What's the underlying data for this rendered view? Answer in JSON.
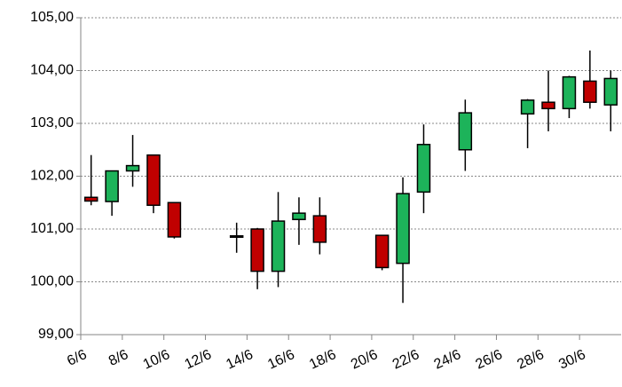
{
  "chart_data": {
    "type": "candlestick",
    "categories": [
      "6/6",
      null,
      "8/6",
      null,
      "10/6",
      null,
      "12/6",
      null,
      "14/6",
      null,
      "16/6",
      null,
      "18/6",
      null,
      "20/6",
      null,
      "22/6",
      null,
      "24/6",
      null,
      "26/6",
      null,
      "28/6",
      null,
      "30/6",
      null
    ],
    "open": [
      101.6,
      101.52,
      102.1,
      102.4,
      101.5,
      null,
      null,
      100.87,
      101.0,
      100.2,
      101.18,
      101.25,
      null,
      null,
      100.88,
      100.35,
      101.7,
      null,
      102.5,
      null,
      null,
      103.18,
      103.4,
      103.28,
      103.8,
      103.35
    ],
    "high": [
      102.4,
      102.1,
      102.78,
      102.4,
      101.5,
      null,
      null,
      101.12,
      101.02,
      101.7,
      101.6,
      101.6,
      null,
      null,
      100.88,
      101.98,
      102.98,
      null,
      103.45,
      null,
      null,
      103.46,
      104.0,
      103.9,
      104.38,
      104.0
    ],
    "low": [
      101.45,
      101.25,
      101.8,
      101.3,
      100.82,
      null,
      null,
      100.55,
      99.86,
      99.9,
      100.7,
      100.52,
      null,
      null,
      100.22,
      99.6,
      101.3,
      null,
      102.1,
      null,
      null,
      102.53,
      102.85,
      103.1,
      103.28,
      102.85
    ],
    "close": [
      101.53,
      102.1,
      102.2,
      101.45,
      100.85,
      null,
      null,
      100.86,
      100.2,
      101.15,
      101.3,
      100.75,
      null,
      null,
      100.27,
      101.67,
      102.6,
      null,
      103.2,
      null,
      null,
      103.44,
      103.28,
      103.88,
      103.4,
      103.85
    ],
    "up_color": "#1db35a",
    "down_color": "#c00000",
    "ylim": [
      99,
      105
    ],
    "yticks": [
      {
        "value": 99,
        "label": "99,00"
      },
      {
        "value": 100,
        "label": "100,00"
      },
      {
        "value": 101,
        "label": "101,00"
      },
      {
        "value": 102,
        "label": "102,00"
      },
      {
        "value": 103,
        "label": "103,00"
      },
      {
        "value": 104,
        "label": "104,00"
      },
      {
        "value": 105,
        "label": "105,00"
      }
    ],
    "grid": true
  }
}
